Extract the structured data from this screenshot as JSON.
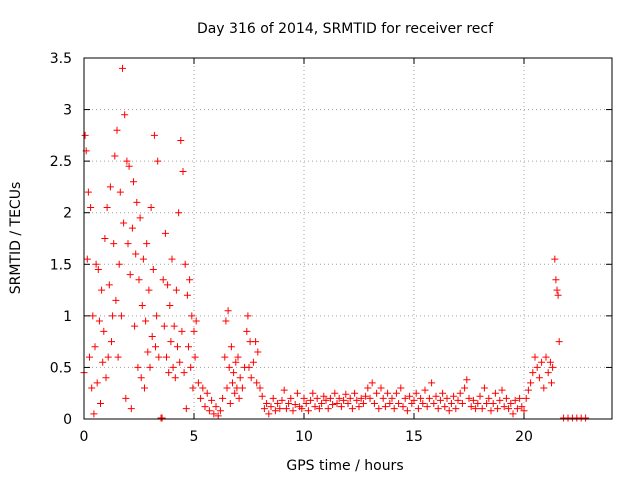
{
  "chart_data": {
    "type": "scatter",
    "title": "Day 316 of 2014, SRMTID for receiver recf",
    "xlabel": "GPS time / hours",
    "ylabel": "SRMTID / TECUs",
    "xlim": [
      0,
      24
    ],
    "ylim": [
      0,
      3.5
    ],
    "xticks": [
      0,
      5,
      10,
      15,
      20
    ],
    "xtick_labels": [
      "0",
      "5",
      "10",
      "15",
      "20"
    ],
    "yticks": [
      0,
      0.5,
      1,
      1.5,
      2,
      2.5,
      3,
      3.5
    ],
    "ytick_labels": [
      "0",
      "0.5",
      "1",
      "1.5",
      "2",
      "2.5",
      "3",
      "3.5"
    ],
    "grid": true,
    "marker": "+",
    "color": "#ff0000",
    "series": [
      {
        "name": "SRMTID",
        "points": [
          [
            0.0,
            0.45
          ],
          [
            0.05,
            2.75
          ],
          [
            0.1,
            2.6
          ],
          [
            0.15,
            1.55
          ],
          [
            0.2,
            2.2
          ],
          [
            0.25,
            0.6
          ],
          [
            0.3,
            2.05
          ],
          [
            0.35,
            0.3
          ],
          [
            0.4,
            1.0
          ],
          [
            0.45,
            0.05
          ],
          [
            0.5,
            0.7
          ],
          [
            0.55,
            1.5
          ],
          [
            0.6,
            0.35
          ],
          [
            0.65,
            1.45
          ],
          [
            0.7,
            0.95
          ],
          [
            0.75,
            0.15
          ],
          [
            0.8,
            1.25
          ],
          [
            0.85,
            0.55
          ],
          [
            0.9,
            0.85
          ],
          [
            0.95,
            1.75
          ],
          [
            1.0,
            0.4
          ],
          [
            1.05,
            2.05
          ],
          [
            1.1,
            0.6
          ],
          [
            1.15,
            1.3
          ],
          [
            1.2,
            2.25
          ],
          [
            1.25,
            0.75
          ],
          [
            1.3,
            1.0
          ],
          [
            1.35,
            1.7
          ],
          [
            1.4,
            2.55
          ],
          [
            1.45,
            1.15
          ],
          [
            1.5,
            2.8
          ],
          [
            1.55,
            0.6
          ],
          [
            1.6,
            1.5
          ],
          [
            1.65,
            2.2
          ],
          [
            1.7,
            1.0
          ],
          [
            1.75,
            3.4
          ],
          [
            1.8,
            1.9
          ],
          [
            1.85,
            2.95
          ],
          [
            1.9,
            0.2
          ],
          [
            1.95,
            2.5
          ],
          [
            2.0,
            1.7
          ],
          [
            2.05,
            2.45
          ],
          [
            2.1,
            1.4
          ],
          [
            2.15,
            0.1
          ],
          [
            2.2,
            1.85
          ],
          [
            2.25,
            2.3
          ],
          [
            2.3,
            0.9
          ],
          [
            2.35,
            1.6
          ],
          [
            2.4,
            2.1
          ],
          [
            2.45,
            0.5
          ],
          [
            2.5,
            1.35
          ],
          [
            2.55,
            1.95
          ],
          [
            2.6,
            0.4
          ],
          [
            2.65,
            1.1
          ],
          [
            2.7,
            1.55
          ],
          [
            2.75,
            0.3
          ],
          [
            2.8,
            0.95
          ],
          [
            2.85,
            1.7
          ],
          [
            2.9,
            0.65
          ],
          [
            2.95,
            1.25
          ],
          [
            3.0,
            0.5
          ],
          [
            3.05,
            2.05
          ],
          [
            3.1,
            0.8
          ],
          [
            3.15,
            1.45
          ],
          [
            3.2,
            2.75
          ],
          [
            3.25,
            0.7
          ],
          [
            3.3,
            1.0
          ],
          [
            3.35,
            2.5
          ],
          [
            3.4,
            0.6
          ],
          [
            3.5,
            0.01
          ],
          [
            3.55,
            0.01
          ],
          [
            3.6,
            1.35
          ],
          [
            3.65,
            0.9
          ],
          [
            3.7,
            1.8
          ],
          [
            3.75,
            0.6
          ],
          [
            3.8,
            1.3
          ],
          [
            3.85,
            0.45
          ],
          [
            3.9,
            1.1
          ],
          [
            3.95,
            0.75
          ],
          [
            4.0,
            1.55
          ],
          [
            4.05,
            0.5
          ],
          [
            4.1,
            0.9
          ],
          [
            4.15,
            0.4
          ],
          [
            4.2,
            1.25
          ],
          [
            4.25,
            0.7
          ],
          [
            4.3,
            2.0
          ],
          [
            4.35,
            0.55
          ],
          [
            4.4,
            2.7
          ],
          [
            4.45,
            0.85
          ],
          [
            4.5,
            2.4
          ],
          [
            4.55,
            0.45
          ],
          [
            4.6,
            1.5
          ],
          [
            4.65,
            0.1
          ],
          [
            4.7,
            1.2
          ],
          [
            4.75,
            0.7
          ],
          [
            4.8,
            1.35
          ],
          [
            4.85,
            0.5
          ],
          [
            4.9,
            1.0
          ],
          [
            4.95,
            0.3
          ],
          [
            5.0,
            0.85
          ],
          [
            5.05,
            0.6
          ],
          [
            5.1,
            0.95
          ],
          [
            5.2,
            0.35
          ],
          [
            5.3,
            0.2
          ],
          [
            5.4,
            0.3
          ],
          [
            5.5,
            0.12
          ],
          [
            5.6,
            0.25
          ],
          [
            5.7,
            0.08
          ],
          [
            5.8,
            0.18
          ],
          [
            5.9,
            0.05
          ],
          [
            6.0,
            0.12
          ],
          [
            6.1,
            0.03
          ],
          [
            6.2,
            0.08
          ],
          [
            6.3,
            0.2
          ],
          [
            6.4,
            0.6
          ],
          [
            6.45,
            0.95
          ],
          [
            6.5,
            0.3
          ],
          [
            6.55,
            1.05
          ],
          [
            6.6,
            0.5
          ],
          [
            6.65,
            0.15
          ],
          [
            6.7,
            0.7
          ],
          [
            6.75,
            0.35
          ],
          [
            6.8,
            0.45
          ],
          [
            6.85,
            0.25
          ],
          [
            6.9,
            0.55
          ],
          [
            6.95,
            0.3
          ],
          [
            7.0,
            0.6
          ],
          [
            7.05,
            0.2
          ],
          [
            7.1,
            0.4
          ],
          [
            7.2,
            0.3
          ],
          [
            7.3,
            0.5
          ],
          [
            7.4,
            0.85
          ],
          [
            7.45,
            1.0
          ],
          [
            7.5,
            0.5
          ],
          [
            7.55,
            0.75
          ],
          [
            7.6,
            0.4
          ],
          [
            7.7,
            0.55
          ],
          [
            7.8,
            0.75
          ],
          [
            7.85,
            0.35
          ],
          [
            7.9,
            0.65
          ],
          [
            8.0,
            0.3
          ],
          [
            8.1,
            0.22
          ],
          [
            8.2,
            0.1
          ],
          [
            8.3,
            0.15
          ],
          [
            8.4,
            0.05
          ],
          [
            8.5,
            0.12
          ],
          [
            8.6,
            0.2
          ],
          [
            8.7,
            0.08
          ],
          [
            8.8,
            0.15
          ],
          [
            8.9,
            0.1
          ],
          [
            9.0,
            0.18
          ],
          [
            9.1,
            0.28
          ],
          [
            9.2,
            0.1
          ],
          [
            9.3,
            0.15
          ],
          [
            9.4,
            0.2
          ],
          [
            9.5,
            0.08
          ],
          [
            9.6,
            0.14
          ],
          [
            9.7,
            0.25
          ],
          [
            9.8,
            0.12
          ],
          [
            9.9,
            0.1
          ],
          [
            10.0,
            0.2
          ],
          [
            10.1,
            0.15
          ],
          [
            10.2,
            0.08
          ],
          [
            10.3,
            0.18
          ],
          [
            10.4,
            0.25
          ],
          [
            10.5,
            0.12
          ],
          [
            10.6,
            0.2
          ],
          [
            10.7,
            0.1
          ],
          [
            10.8,
            0.15
          ],
          [
            10.9,
            0.22
          ],
          [
            11.0,
            0.18
          ],
          [
            11.1,
            0.1
          ],
          [
            11.2,
            0.2
          ],
          [
            11.3,
            0.14
          ],
          [
            11.4,
            0.25
          ],
          [
            11.5,
            0.15
          ],
          [
            11.6,
            0.2
          ],
          [
            11.7,
            0.12
          ],
          [
            11.8,
            0.18
          ],
          [
            11.9,
            0.24
          ],
          [
            12.0,
            0.15
          ],
          [
            12.1,
            0.2
          ],
          [
            12.2,
            0.1
          ],
          [
            12.3,
            0.25
          ],
          [
            12.4,
            0.18
          ],
          [
            12.5,
            0.12
          ],
          [
            12.6,
            0.2
          ],
          [
            12.7,
            0.15
          ],
          [
            12.8,
            0.22
          ],
          [
            12.9,
            0.3
          ],
          [
            13.0,
            0.2
          ],
          [
            13.1,
            0.35
          ],
          [
            13.2,
            0.15
          ],
          [
            13.3,
            0.25
          ],
          [
            13.4,
            0.1
          ],
          [
            13.5,
            0.3
          ],
          [
            13.6,
            0.2
          ],
          [
            13.7,
            0.12
          ],
          [
            13.8,
            0.25
          ],
          [
            13.9,
            0.15
          ],
          [
            14.0,
            0.2
          ],
          [
            14.1,
            0.1
          ],
          [
            14.2,
            0.25
          ],
          [
            14.3,
            0.15
          ],
          [
            14.4,
            0.3
          ],
          [
            14.5,
            0.12
          ],
          [
            14.6,
            0.2
          ],
          [
            14.7,
            0.08
          ],
          [
            14.8,
            0.22
          ],
          [
            14.9,
            0.15
          ],
          [
            15.0,
            0.18
          ],
          [
            15.1,
            0.25
          ],
          [
            15.2,
            0.1
          ],
          [
            15.3,
            0.2
          ],
          [
            15.4,
            0.15
          ],
          [
            15.5,
            0.28
          ],
          [
            15.6,
            0.12
          ],
          [
            15.7,
            0.2
          ],
          [
            15.8,
            0.35
          ],
          [
            15.9,
            0.15
          ],
          [
            16.0,
            0.22
          ],
          [
            16.1,
            0.1
          ],
          [
            16.2,
            0.18
          ],
          [
            16.3,
            0.25
          ],
          [
            16.4,
            0.12
          ],
          [
            16.5,
            0.2
          ],
          [
            16.6,
            0.08
          ],
          [
            16.7,
            0.15
          ],
          [
            16.8,
            0.22
          ],
          [
            16.9,
            0.1
          ],
          [
            17.0,
            0.18
          ],
          [
            17.1,
            0.25
          ],
          [
            17.2,
            0.15
          ],
          [
            17.3,
            0.3
          ],
          [
            17.4,
            0.38
          ],
          [
            17.5,
            0.2
          ],
          [
            17.6,
            0.12
          ],
          [
            17.7,
            0.18
          ],
          [
            17.8,
            0.1
          ],
          [
            17.9,
            0.15
          ],
          [
            18.0,
            0.22
          ],
          [
            18.1,
            0.1
          ],
          [
            18.2,
            0.3
          ],
          [
            18.3,
            0.15
          ],
          [
            18.4,
            0.2
          ],
          [
            18.5,
            0.08
          ],
          [
            18.6,
            0.15
          ],
          [
            18.7,
            0.25
          ],
          [
            18.8,
            0.1
          ],
          [
            18.9,
            0.18
          ],
          [
            19.0,
            0.28
          ],
          [
            19.1,
            0.12
          ],
          [
            19.2,
            0.2
          ],
          [
            19.3,
            0.1
          ],
          [
            19.4,
            0.15
          ],
          [
            19.5,
            0.05
          ],
          [
            19.6,
            0.18
          ],
          [
            19.7,
            0.1
          ],
          [
            19.8,
            0.2
          ],
          [
            19.9,
            0.12
          ],
          [
            20.0,
            0.08
          ],
          [
            20.1,
            0.2
          ],
          [
            20.2,
            0.28
          ],
          [
            20.3,
            0.35
          ],
          [
            20.4,
            0.45
          ],
          [
            20.5,
            0.6
          ],
          [
            20.6,
            0.5
          ],
          [
            20.7,
            0.4
          ],
          [
            20.8,
            0.55
          ],
          [
            20.9,
            0.3
          ],
          [
            21.0,
            0.6
          ],
          [
            21.1,
            0.45
          ],
          [
            21.2,
            0.55
          ],
          [
            21.25,
            0.35
          ],
          [
            21.3,
            0.5
          ],
          [
            21.4,
            1.55
          ],
          [
            21.45,
            1.35
          ],
          [
            21.5,
            1.25
          ],
          [
            21.55,
            1.2
          ],
          [
            21.6,
            0.75
          ],
          [
            21.8,
            0.01
          ],
          [
            22.0,
            0.01
          ],
          [
            22.2,
            0.01
          ],
          [
            22.4,
            0.01
          ],
          [
            22.6,
            0.01
          ],
          [
            22.8,
            0.01
          ]
        ]
      }
    ]
  }
}
